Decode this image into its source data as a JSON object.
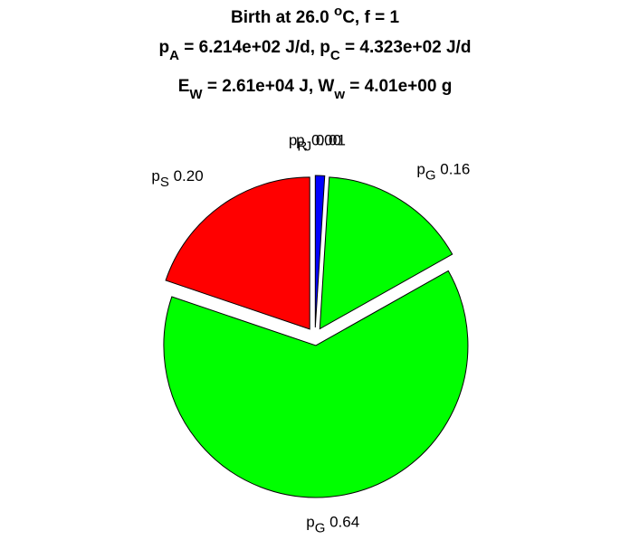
{
  "chart_data": {
    "type": "pie",
    "title_lines": [
      [
        {
          "text": "Birth at 26.0 "
        },
        {
          "sup": "o"
        },
        {
          "text": "C, f = 1"
        }
      ],
      [
        {
          "text": "p"
        },
        {
          "sub": "A"
        },
        {
          "text": " = 6.214e+02 J/d, p"
        },
        {
          "sub": "C"
        },
        {
          "text": " = 4.323e+02 J/d"
        }
      ],
      [
        {
          "text": "E"
        },
        {
          "sub": "W"
        },
        {
          "text": " = 2.61e+04 J, W"
        },
        {
          "sub": "w"
        },
        {
          "text": " = 4.01e+00 g"
        }
      ]
    ],
    "categories": [
      {
        "symbol": "p",
        "subscript": "R"
      },
      {
        "symbol": "p",
        "subscript": "J"
      },
      {
        "symbol": "p",
        "subscript": "G"
      },
      {
        "symbol": "p",
        "subscript": "G"
      },
      {
        "symbol": "p",
        "subscript": "S"
      }
    ],
    "values": [
      0.0,
      0.01,
      0.16,
      0.64,
      0.2
    ],
    "value_labels": [
      "0.00",
      "0.01",
      "0.16",
      "0.64",
      "0.20"
    ],
    "colors": [
      "#0000ff",
      "#0000ff",
      "#00ff00",
      "#00ff00",
      "#ff0000"
    ]
  }
}
